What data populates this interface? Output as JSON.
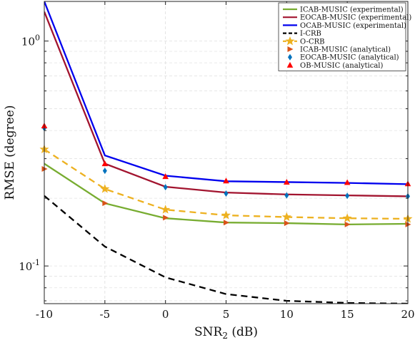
{
  "chart_data": {
    "type": "line",
    "xlabel": "SNR",
    "xlabel_sub": "2",
    "xlabel_unit": " (dB)",
    "ylabel": "RMSE (degree)",
    "xlim": [
      -10,
      20
    ],
    "ylim": [
      0.068,
      1.5
    ],
    "yscale": "log",
    "grid": true,
    "legend_position": "top-right",
    "x_ticks": [
      -10,
      -5,
      0,
      5,
      10,
      15,
      20
    ],
    "x_tick_labels": [
      "-10",
      "-5",
      "0",
      "5",
      "10",
      "15",
      "20"
    ],
    "y_ticks": [
      1,
      0.1
    ],
    "y_tick_labels": [
      {
        "base": "10",
        "exp": "0"
      },
      {
        "base": "10",
        "exp": "-1"
      }
    ],
    "x": [
      -10,
      -5,
      0,
      5,
      10,
      15,
      20
    ],
    "series": [
      {
        "name": "ICAB-MUSIC (experimental)",
        "color": "#77ac30",
        "style": "solid",
        "marker": "none",
        "values": [
          0.285,
          0.19,
          0.163,
          0.156,
          0.155,
          0.153,
          0.154
        ]
      },
      {
        "name": "EOCAB-MUSIC (experimental)",
        "color": "#a2142f",
        "style": "solid",
        "marker": "none",
        "values": [
          1.35,
          0.285,
          0.225,
          0.212,
          0.208,
          0.206,
          0.204
        ]
      },
      {
        "name": "OCAB-MUSIC (experimental)",
        "color": "#0000ee",
        "style": "solid",
        "marker": "none",
        "values": [
          1.5,
          0.31,
          0.252,
          0.238,
          0.236,
          0.234,
          0.231
        ]
      },
      {
        "name": "I-CRB",
        "color": "#000000",
        "style": "dashed",
        "marker": "none",
        "values": [
          0.205,
          0.122,
          0.089,
          0.075,
          0.07,
          0.0685,
          0.068
        ]
      },
      {
        "name": "O-CRB",
        "color": "#edb120",
        "style": "dashed",
        "marker": "star",
        "values": [
          0.33,
          0.22,
          0.178,
          0.168,
          0.165,
          0.163,
          0.162
        ]
      },
      {
        "name": "ICAB-MUSIC (analytical)",
        "color": "#d95319",
        "style": "none",
        "marker": "triangle-right",
        "values": [
          0.27,
          0.19,
          0.164,
          0.156,
          0.155,
          0.153,
          0.153
        ]
      },
      {
        "name": "EOCAB-MUSIC (analytical)",
        "color": "#0072bd",
        "style": "none",
        "marker": "diamond",
        "values": [
          0.41,
          0.265,
          0.224,
          0.21,
          0.206,
          0.205,
          0.204
        ]
      },
      {
        "name": "OB-MUSIC (analytical)",
        "color": "#ff0000",
        "style": "none",
        "marker": "triangle-up",
        "values": [
          0.42,
          0.285,
          0.25,
          0.239,
          0.236,
          0.235,
          0.232
        ]
      }
    ]
  }
}
